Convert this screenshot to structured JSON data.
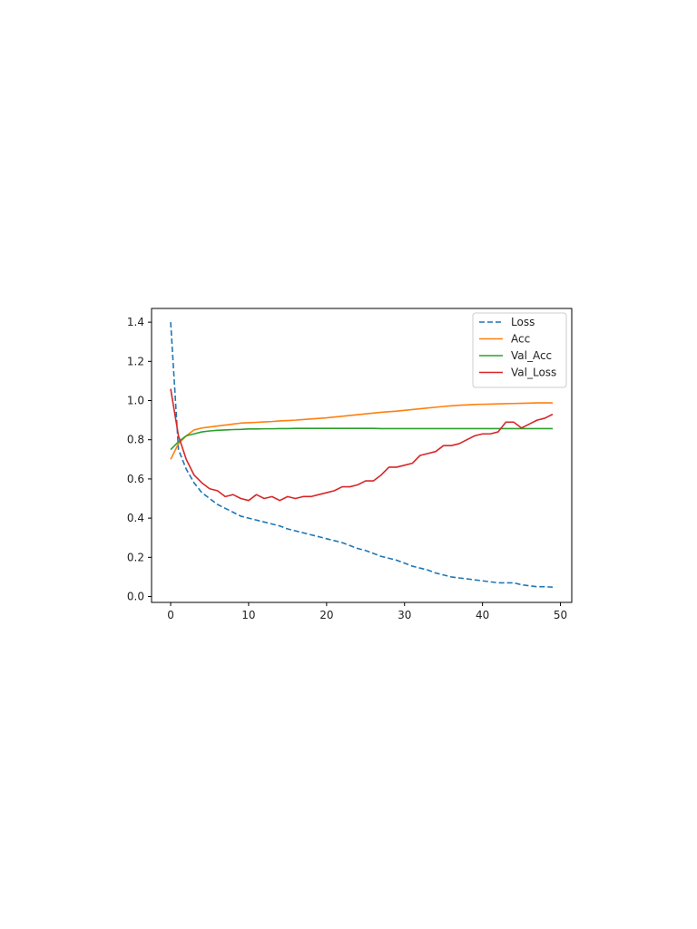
{
  "chart_data": {
    "type": "line",
    "title": "",
    "xlabel": "",
    "ylabel": "",
    "xlim": [
      -2.45,
      51.45
    ],
    "ylim": [
      -0.03,
      1.47
    ],
    "xticks": [
      0,
      10,
      20,
      30,
      40,
      50
    ],
    "yticks": [
      0.0,
      0.2,
      0.4,
      0.6,
      0.8,
      1.0,
      1.2,
      1.4
    ],
    "xtick_labels": [
      "0",
      "10",
      "20",
      "30",
      "40",
      "50"
    ],
    "ytick_labels": [
      "0.0",
      "0.2",
      "0.4",
      "0.6",
      "0.8",
      "1.0",
      "1.2",
      "1.4"
    ],
    "grid": false,
    "legend_position": "top-right",
    "x": [
      0,
      1,
      2,
      3,
      4,
      5,
      6,
      7,
      8,
      9,
      10,
      11,
      12,
      13,
      14,
      15,
      16,
      17,
      18,
      19,
      20,
      21,
      22,
      23,
      24,
      25,
      26,
      27,
      28,
      29,
      30,
      31,
      32,
      33,
      34,
      35,
      36,
      37,
      38,
      39,
      40,
      41,
      42,
      43,
      44,
      45,
      46,
      47,
      48,
      49
    ],
    "series": [
      {
        "name": "Loss",
        "color": "#1f77b4",
        "dashed": true,
        "values": [
          1.4,
          0.75,
          0.65,
          0.58,
          0.53,
          0.5,
          0.47,
          0.45,
          0.43,
          0.41,
          0.4,
          0.39,
          0.38,
          0.37,
          0.36,
          0.345,
          0.335,
          0.325,
          0.315,
          0.305,
          0.295,
          0.285,
          0.275,
          0.26,
          0.245,
          0.235,
          0.22,
          0.205,
          0.195,
          0.185,
          0.17,
          0.155,
          0.145,
          0.135,
          0.12,
          0.11,
          0.1,
          0.095,
          0.09,
          0.085,
          0.08,
          0.075,
          0.07,
          0.07,
          0.07,
          0.06,
          0.055,
          0.05,
          0.05,
          0.048
        ]
      },
      {
        "name": "Acc",
        "color": "#ff7f0e",
        "dashed": false,
        "values": [
          0.7,
          0.78,
          0.82,
          0.85,
          0.86,
          0.865,
          0.87,
          0.875,
          0.88,
          0.885,
          0.887,
          0.889,
          0.891,
          0.893,
          0.896,
          0.898,
          0.9,
          0.903,
          0.906,
          0.909,
          0.912,
          0.916,
          0.92,
          0.924,
          0.928,
          0.932,
          0.936,
          0.94,
          0.943,
          0.946,
          0.95,
          0.954,
          0.958,
          0.962,
          0.966,
          0.97,
          0.973,
          0.976,
          0.978,
          0.98,
          0.981,
          0.982,
          0.983,
          0.984,
          0.985,
          0.986,
          0.987,
          0.988,
          0.988,
          0.988
        ]
      },
      {
        "name": "Val_Acc",
        "color": "#2ca02c",
        "dashed": false,
        "values": [
          0.75,
          0.79,
          0.82,
          0.83,
          0.84,
          0.845,
          0.848,
          0.85,
          0.852,
          0.853,
          0.855,
          0.855,
          0.856,
          0.856,
          0.857,
          0.857,
          0.858,
          0.858,
          0.858,
          0.858,
          0.858,
          0.858,
          0.858,
          0.858,
          0.858,
          0.858,
          0.858,
          0.857,
          0.857,
          0.857,
          0.857,
          0.857,
          0.857,
          0.857,
          0.857,
          0.857,
          0.857,
          0.857,
          0.857,
          0.857,
          0.857,
          0.857,
          0.857,
          0.857,
          0.857,
          0.857,
          0.857,
          0.857,
          0.857,
          0.857
        ]
      },
      {
        "name": "Val_Loss",
        "color": "#d62728",
        "dashed": false,
        "values": [
          1.06,
          0.82,
          0.7,
          0.62,
          0.58,
          0.55,
          0.54,
          0.51,
          0.52,
          0.5,
          0.49,
          0.52,
          0.5,
          0.51,
          0.49,
          0.51,
          0.5,
          0.51,
          0.51,
          0.52,
          0.53,
          0.54,
          0.56,
          0.56,
          0.57,
          0.59,
          0.59,
          0.62,
          0.66,
          0.66,
          0.67,
          0.68,
          0.72,
          0.73,
          0.74,
          0.77,
          0.77,
          0.78,
          0.8,
          0.82,
          0.83,
          0.83,
          0.84,
          0.89,
          0.89,
          0.86,
          0.88,
          0.9,
          0.91,
          0.93
        ]
      }
    ]
  }
}
